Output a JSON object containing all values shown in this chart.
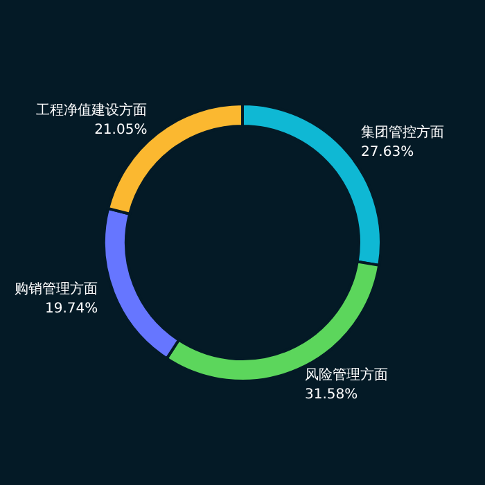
{
  "chart_data": {
    "type": "donut",
    "categories": [
      "集团管控方面",
      "风险管理方面",
      "购销管理方面",
      "工程净值建设方面"
    ],
    "values": [
      27.63,
      31.58,
      19.74,
      21.05
    ],
    "colors": [
      "#0fb8d4",
      "#5cd65c",
      "#6676ff",
      "#fbb830"
    ],
    "value_labels": [
      "27.63%",
      "31.58%",
      "19.74%",
      "21.05%"
    ]
  }
}
